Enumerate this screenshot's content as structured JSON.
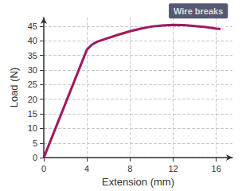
{
  "chart_data": {
    "type": "line",
    "x_label": "Extension (mm)",
    "y_label": "Load (N)",
    "x": [
      0,
      4,
      4.5,
      5,
      6,
      7,
      8,
      9,
      10,
      11,
      12,
      13,
      14,
      15,
      16,
      16.7
    ],
    "values": [
      0,
      37,
      38.8,
      39.8,
      41,
      42.2,
      43.3,
      44.2,
      44.9,
      45.3,
      45.5,
      45.4,
      45.1,
      44.7,
      44.2,
      44
    ],
    "color": "#a0195f",
    "marker": "none",
    "xlim": [
      0,
      17.5
    ],
    "xticks": [
      0,
      4,
      8,
      12,
      16
    ],
    "ylim": [
      0,
      48
    ],
    "yticks": [
      0,
      5,
      10,
      15,
      20,
      25,
      30,
      35,
      40,
      45
    ],
    "grid": true,
    "annotations": [
      {
        "text": "Wire breaks",
        "x": 16.7,
        "y": 44,
        "marker": "circle",
        "color": "#2c2f4f"
      }
    ]
  }
}
